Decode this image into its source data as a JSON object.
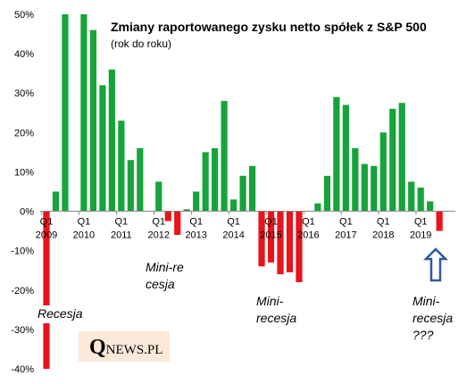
{
  "chart_data": {
    "type": "bar",
    "title": "Zmiany raportowanego zysku netto spółek z S&P 500",
    "subtitle": "(rok do roku)",
    "categories": [
      "Q1 2009",
      null,
      null,
      null,
      "Q1 2010",
      null,
      null,
      null,
      "Q1 2011",
      null,
      null,
      null,
      "Q1 2012",
      null,
      null,
      null,
      "Q1 2013",
      null,
      null,
      null,
      "Q1 2014",
      null,
      null,
      null,
      "Q1 2015",
      null,
      null,
      null,
      "Q1 2016",
      null,
      null,
      null,
      "Q1 2017",
      null,
      null,
      null,
      "Q1 2018",
      null,
      null,
      null,
      "Q1 2019",
      null,
      null
    ],
    "values": [
      -40,
      5,
      50,
      null,
      50,
      46,
      32,
      36,
      23,
      13,
      16,
      null,
      7.5,
      -2.5,
      -6,
      0.5,
      5,
      15,
      16,
      28,
      3,
      9,
      11.5,
      -14,
      -13,
      -16,
      -15.5,
      -18,
      null,
      2,
      9,
      29,
      27,
      16,
      12,
      11.5,
      20,
      26,
      27.5,
      7.5,
      6,
      2.5,
      -5
    ],
    "positive_color": "#17a33b",
    "negative_color": "#e8141b",
    "ylim": [
      -40,
      50
    ],
    "yticks": [
      {
        "value": -40,
        "label": "-40%"
      },
      {
        "value": -30,
        "label": "-30%"
      },
      {
        "value": -20,
        "label": "-20%"
      },
      {
        "value": -10,
        "label": "-10%"
      },
      {
        "value": 0,
        "label": "0%"
      },
      {
        "value": 10,
        "label": "10%"
      },
      {
        "value": 20,
        "label": "20%"
      },
      {
        "value": 30,
        "label": "30%"
      },
      {
        "value": 40,
        "label": "40%"
      },
      {
        "value": 50,
        "label": "50%"
      }
    ],
    "annotations": [
      {
        "lines": [
          "Recesja"
        ]
      },
      {
        "lines": [
          "Mini-re",
          "cesja"
        ]
      },
      {
        "lines": [
          "Mini-",
          "recesja"
        ]
      },
      {
        "lines": [
          "Mini-",
          "recesja",
          "???"
        ]
      }
    ],
    "logo": {
      "initial": "Q",
      "rest": "NEWS.PL"
    }
  }
}
